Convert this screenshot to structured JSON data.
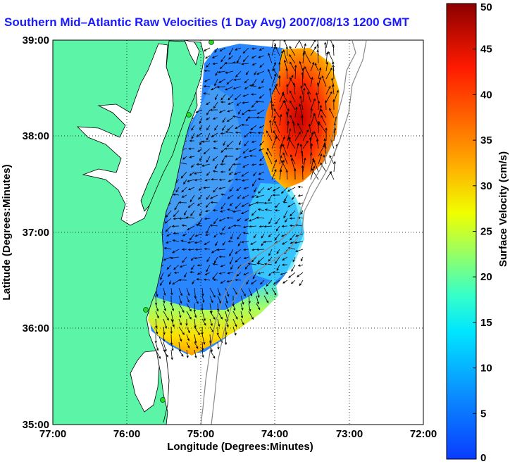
{
  "title": "Southern Mid–Atlantic Raw Velocities (1 Day Avg) 2007/08/13 1200 GMT",
  "x_axis": {
    "label": "Longitude (Degrees:Minutes)",
    "ticks": [
      "77:00",
      "76:00",
      "75:00",
      "74:00",
      "73:00",
      "72:00"
    ]
  },
  "y_axis": {
    "label": "Latitude (Degrees:Minutes)",
    "ticks": [
      "39:00",
      "38:00",
      "37:00",
      "36:00",
      "35:00"
    ]
  },
  "colorbar": {
    "label": "Surface Velocity (cm/s)",
    "ticks": [
      "50",
      "45",
      "40",
      "35",
      "30",
      "25",
      "20",
      "15",
      "10",
      "5",
      "0"
    ],
    "min": 0,
    "max": 50,
    "colormap": "jet"
  },
  "colors": {
    "land": "#5cf5a8",
    "title": "#1a1aff",
    "station": "#22dd22",
    "bathymetry": "#888888"
  },
  "chart_data": {
    "type": "heatmap",
    "xlim": [
      -77,
      -72
    ],
    "ylim": [
      35,
      39
    ],
    "value_range": [
      0,
      50
    ],
    "regions": [
      {
        "name": "north-east",
        "speed_cm_s": 40
      },
      {
        "name": "central",
        "speed_cm_s": 8
      },
      {
        "name": "south-edge",
        "speed_cm_s": 25
      },
      {
        "name": "east-bulge",
        "speed_cm_s": 12
      }
    ]
  }
}
